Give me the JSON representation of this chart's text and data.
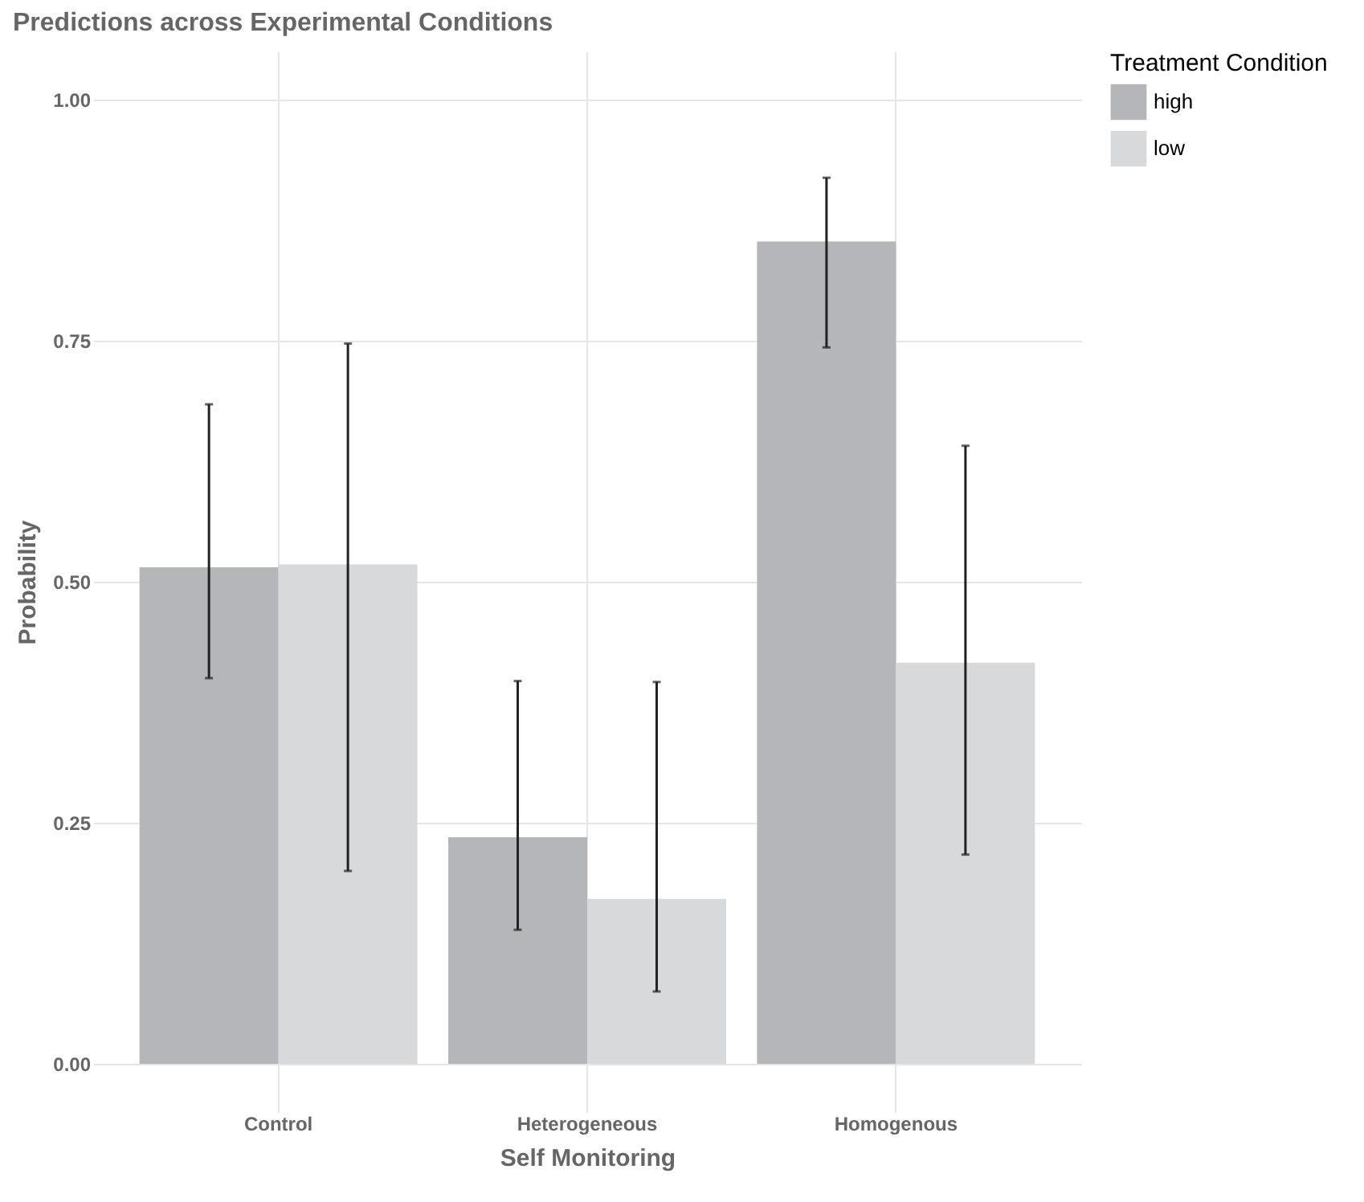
{
  "chart_data": {
    "type": "bar",
    "title": "Predictions across Experimental Conditions",
    "xlabel": "Self Monitoring",
    "ylabel": "Probability",
    "legend_title": "Treatment Condition",
    "categories": [
      "Control",
      "Heterogeneous",
      "Homogenous"
    ],
    "series": [
      {
        "name": "high",
        "color": "#b5b6b9",
        "values": [
          0.515,
          0.235,
          0.853
        ],
        "errors": [
          [
            0.4,
            0.684
          ],
          [
            0.139,
            0.397
          ],
          [
            0.743,
            0.919
          ]
        ]
      },
      {
        "name": "low",
        "color": "#d8d9db",
        "values": [
          0.518,
          0.171,
          0.416
        ],
        "errors": [
          [
            0.2,
            0.747
          ],
          [
            0.075,
            0.396
          ],
          [
            0.217,
            0.641
          ]
        ]
      }
    ],
    "ylim": [
      -0.05,
      1.05
    ],
    "yticks": [
      {
        "value": 0,
        "label": "0.00"
      },
      {
        "value": 0.25,
        "label": "0.25"
      },
      {
        "value": 0.5,
        "label": "0.50"
      },
      {
        "value": 0.75,
        "label": "0.75"
      },
      {
        "value": 1,
        "label": "1.00"
      }
    ],
    "grid": true,
    "legend": "right"
  }
}
